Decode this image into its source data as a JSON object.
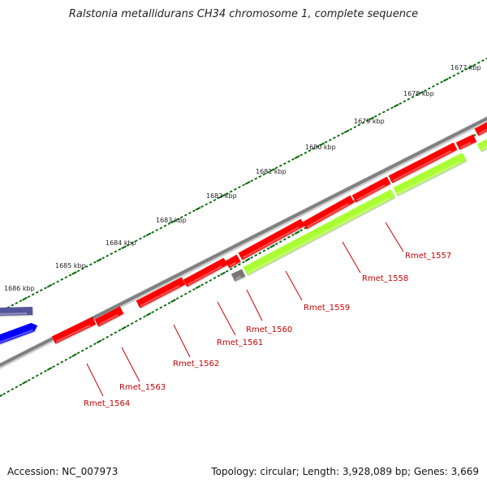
{
  "title": "Ralstonia metallidurans CH34 chromosome 1, complete sequence",
  "footer": {
    "accession": "Accession: NC_007973",
    "summary": "Topology: circular; Length: 3,928,089 bp; Genes: 3,669"
  },
  "colors": {
    "backbone": "#808080",
    "gene_red": "#ff0000",
    "gene_green": "#aaff33",
    "gene_blue": "#0000ff",
    "gene_purple": "#55559a",
    "gene_gray": "#777777",
    "tick": "#006600",
    "label_red": "#cc0000"
  },
  "scale_labels": [
    "1677 kbp",
    "1678 kbp",
    "1679 kbp",
    "1680 kbp",
    "1681 kbp",
    "1682 kbp",
    "1683 kbp",
    "1684 kbp",
    "1685 kbp",
    "1686 kbp"
  ],
  "gene_labels": [
    "Rmet_1557",
    "Rmet_1558",
    "Rmet_1559",
    "Rmet_1560",
    "Rmet_1561",
    "Rmet_1562",
    "Rmet_1563",
    "Rmet_1564"
  ]
}
